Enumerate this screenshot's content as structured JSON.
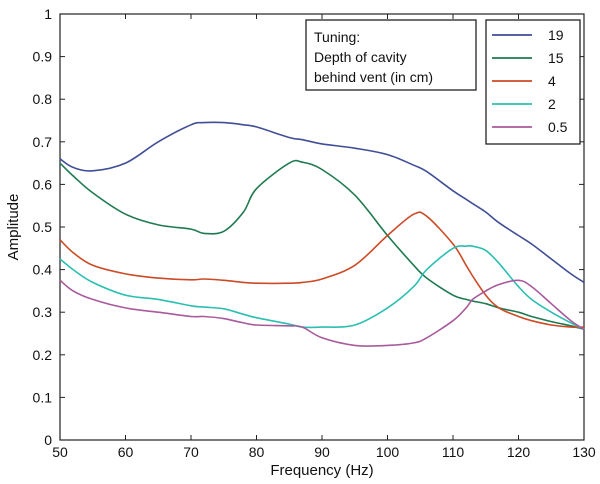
{
  "chart_data": {
    "type": "line",
    "title": "",
    "xlabel": "Frequency (Hz)",
    "ylabel": "Amplitude",
    "xlim": [
      50,
      130
    ],
    "ylim": [
      0,
      1
    ],
    "xticks": [
      50,
      60,
      70,
      80,
      90,
      100,
      110,
      120,
      130
    ],
    "yticks": [
      0,
      0.1,
      0.2,
      0.3,
      0.4,
      0.5,
      0.6,
      0.7,
      0.8,
      0.9,
      1
    ],
    "grid": false,
    "legend_position": "top-right",
    "annotation": [
      "Tuning:",
      "Depth of cavity",
      "behind vent (in cm)"
    ],
    "x": [
      50,
      52,
      55,
      60,
      65,
      70,
      72,
      75,
      78,
      80,
      85,
      87,
      90,
      95,
      100,
      104,
      106,
      110,
      112,
      113,
      115,
      117,
      120,
      122,
      125,
      128,
      130
    ],
    "series": [
      {
        "name": "19",
        "color": "#3f4e96",
        "values": [
          0.66,
          0.64,
          0.632,
          0.65,
          0.7,
          0.74,
          0.745,
          0.745,
          0.74,
          0.735,
          0.71,
          0.705,
          0.695,
          0.685,
          0.67,
          0.645,
          0.63,
          0.585,
          0.565,
          0.555,
          0.535,
          0.51,
          0.48,
          0.46,
          0.425,
          0.39,
          0.37
        ]
      },
      {
        "name": "15",
        "color": "#1f7a50",
        "values": [
          0.65,
          0.62,
          0.58,
          0.53,
          0.505,
          0.495,
          0.485,
          0.49,
          0.535,
          0.59,
          0.65,
          0.652,
          0.635,
          0.575,
          0.48,
          0.41,
          0.38,
          0.34,
          0.33,
          0.326,
          0.32,
          0.31,
          0.3,
          0.29,
          0.278,
          0.268,
          0.26
        ]
      },
      {
        "name": "4",
        "color": "#cc4a26",
        "values": [
          0.47,
          0.44,
          0.41,
          0.39,
          0.38,
          0.376,
          0.378,
          0.375,
          0.37,
          0.368,
          0.368,
          0.37,
          0.378,
          0.41,
          0.48,
          0.53,
          0.525,
          0.46,
          0.41,
          0.385,
          0.34,
          0.31,
          0.29,
          0.28,
          0.27,
          0.265,
          0.265
        ]
      },
      {
        "name": "2",
        "color": "#2bbfb1",
        "values": [
          0.425,
          0.4,
          0.37,
          0.34,
          0.33,
          0.315,
          0.312,
          0.308,
          0.295,
          0.287,
          0.272,
          0.265,
          0.265,
          0.27,
          0.31,
          0.36,
          0.4,
          0.45,
          0.455,
          0.455,
          0.445,
          0.415,
          0.36,
          0.33,
          0.3,
          0.275,
          0.26
        ]
      },
      {
        "name": "0.5",
        "color": "#a85a9b",
        "values": [
          0.375,
          0.35,
          0.33,
          0.31,
          0.3,
          0.29,
          0.29,
          0.285,
          0.275,
          0.27,
          0.268,
          0.265,
          0.24,
          0.222,
          0.222,
          0.228,
          0.24,
          0.28,
          0.31,
          0.33,
          0.35,
          0.365,
          0.375,
          0.36,
          0.32,
          0.28,
          0.26
        ]
      }
    ]
  }
}
